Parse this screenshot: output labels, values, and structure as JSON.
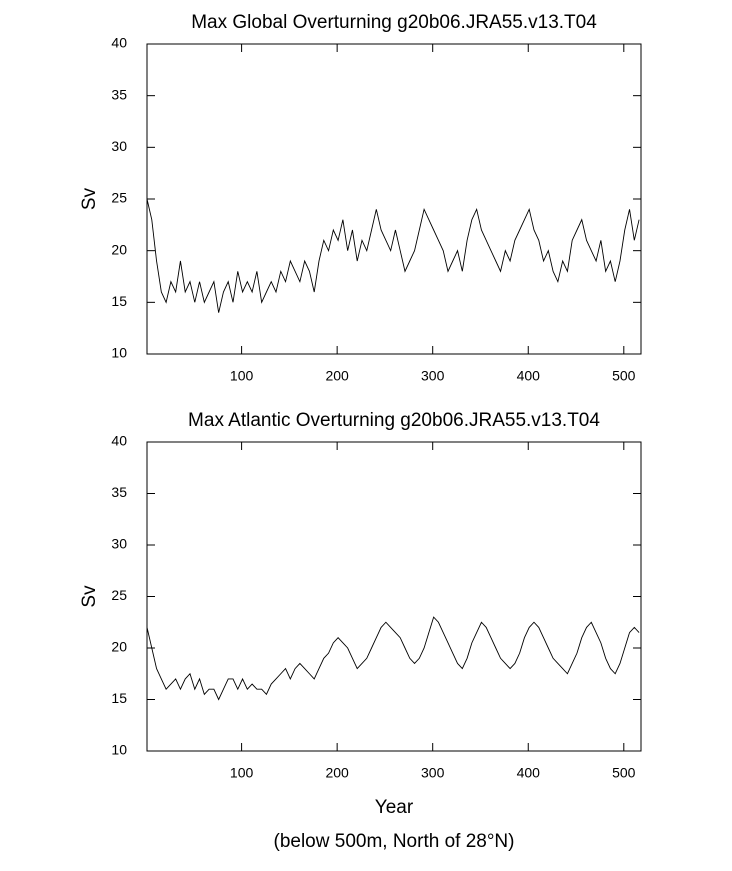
{
  "chart_data": [
    {
      "type": "line",
      "title": "Max Global Overturning g20b06.JRA55.v13.T04",
      "y_label": "Sv",
      "x": [
        1,
        6,
        11,
        16,
        21,
        26,
        31,
        36,
        41,
        46,
        51,
        56,
        61,
        66,
        71,
        76,
        81,
        86,
        91,
        96,
        101,
        106,
        111,
        116,
        121,
        126,
        131,
        136,
        141,
        146,
        151,
        156,
        161,
        166,
        171,
        176,
        181,
        186,
        191,
        196,
        201,
        206,
        211,
        216,
        221,
        226,
        231,
        236,
        241,
        246,
        251,
        256,
        261,
        266,
        271,
        276,
        281,
        286,
        291,
        296,
        301,
        306,
        311,
        316,
        321,
        326,
        331,
        336,
        341,
        346,
        351,
        356,
        361,
        366,
        371,
        376,
        381,
        386,
        391,
        396,
        401,
        406,
        411,
        416,
        421,
        426,
        431,
        436,
        441,
        446,
        451,
        456,
        461,
        466,
        471,
        476,
        481,
        486,
        491,
        496,
        501,
        506,
        511,
        516
      ],
      "series": [
        {
          "color": "#000000",
          "values": [
            25,
            23,
            19,
            16,
            15,
            17,
            16,
            19,
            16,
            17,
            15,
            17,
            15,
            16,
            17,
            14,
            16,
            17,
            15,
            18,
            16,
            17,
            16,
            18,
            15,
            16,
            17,
            16,
            18,
            17,
            19,
            18,
            17,
            19,
            18,
            16,
            19,
            21,
            20,
            22,
            21,
            23,
            20,
            22,
            19,
            21,
            20,
            22,
            24,
            22,
            21,
            20,
            22,
            20,
            18,
            19,
            20,
            22,
            24,
            23,
            22,
            21,
            20,
            18,
            19,
            20,
            18,
            21,
            23,
            24,
            22,
            21,
            20,
            19,
            18,
            20,
            19,
            21,
            22,
            23,
            24,
            22,
            21,
            19,
            20,
            18,
            17,
            19,
            18,
            21,
            22,
            23,
            21,
            20,
            19,
            21,
            18,
            19,
            17,
            19,
            22,
            24,
            21,
            23
          ]
        }
      ],
      "xlim": [
        1,
        518
      ],
      "ylim": [
        10,
        40
      ],
      "xticks": [
        100,
        200,
        300,
        400,
        500
      ],
      "yticks": [
        10,
        15,
        20,
        25,
        30,
        35,
        40
      ]
    },
    {
      "type": "line",
      "title": "Max Atlantic Overturning g20b06.JRA55.v13.T04",
      "y_label": "Sv",
      "x_label": "Year",
      "note": "(below 500m, North of 28°N)",
      "x": [
        1,
        6,
        11,
        16,
        21,
        26,
        31,
        36,
        41,
        46,
        51,
        56,
        61,
        66,
        71,
        76,
        81,
        86,
        91,
        96,
        101,
        106,
        111,
        116,
        121,
        126,
        131,
        136,
        141,
        146,
        151,
        156,
        161,
        166,
        171,
        176,
        181,
        186,
        191,
        196,
        201,
        206,
        211,
        216,
        221,
        226,
        231,
        236,
        241,
        246,
        251,
        256,
        261,
        266,
        271,
        276,
        281,
        286,
        291,
        296,
        301,
        306,
        311,
        316,
        321,
        326,
        331,
        336,
        341,
        346,
        351,
        356,
        361,
        366,
        371,
        376,
        381,
        386,
        391,
        396,
        401,
        406,
        411,
        416,
        421,
        426,
        431,
        436,
        441,
        446,
        451,
        456,
        461,
        466,
        471,
        476,
        481,
        486,
        491,
        496,
        501,
        506,
        511,
        516
      ],
      "series": [
        {
          "color": "#000000",
          "values": [
            22,
            20,
            18,
            17,
            16,
            16.5,
            17,
            16,
            17,
            17.5,
            16,
            17,
            15.5,
            16,
            16,
            15,
            16,
            17,
            17,
            16,
            17,
            16,
            16.5,
            16,
            16,
            15.5,
            16.5,
            17,
            17.5,
            18,
            17,
            18,
            18.5,
            18,
            17.5,
            17,
            18,
            19,
            19.5,
            20.5,
            21,
            20.5,
            20,
            19,
            18,
            18.5,
            19,
            20,
            21,
            22,
            22.5,
            22,
            21.5,
            21,
            20,
            19,
            18.5,
            19,
            20,
            21.5,
            23,
            22.5,
            21.5,
            20.5,
            19.5,
            18.5,
            18,
            19,
            20.5,
            21.5,
            22.5,
            22,
            21,
            20,
            19,
            18.5,
            18,
            18.5,
            19.5,
            21,
            22,
            22.5,
            22,
            21,
            20,
            19,
            18.5,
            18,
            17.5,
            18.5,
            19.5,
            21,
            22,
            22.5,
            21.5,
            20.5,
            19,
            18,
            17.5,
            18.5,
            20,
            21.5,
            22,
            21.5
          ]
        }
      ],
      "xlim": [
        1,
        518
      ],
      "ylim": [
        10,
        40
      ],
      "xticks": [
        100,
        200,
        300,
        400,
        500
      ],
      "yticks": [
        10,
        15,
        20,
        25,
        30,
        35,
        40
      ]
    }
  ]
}
